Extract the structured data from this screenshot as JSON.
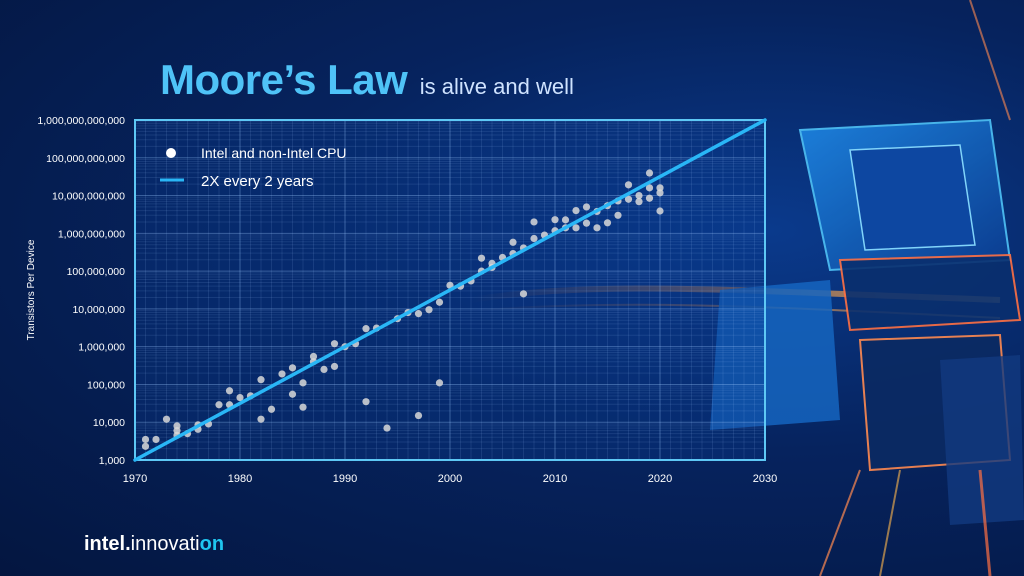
{
  "title": {
    "main": "Moore’s Law",
    "sub": "is alive and well"
  },
  "brand": {
    "part1": "intel.",
    "part2": "innovati",
    "part3": "on"
  },
  "colors": {
    "accent": "#4fc3f7",
    "trend": "#29b6f6",
    "point": "#d8d8d8",
    "background": "#06235e"
  },
  "chart_data": {
    "type": "scatter",
    "title": "Moore’s Law",
    "xlabel": "",
    "ylabel": "Transistors Per Device",
    "xlim": [
      1970,
      2030
    ],
    "ylim": [
      1000,
      1000000000000
    ],
    "yscale": "log",
    "xticks": [
      1970,
      1980,
      1990,
      2000,
      2010,
      2020,
      2030
    ],
    "xtick_labels": [
      "1970",
      "1980",
      "1990",
      "2000",
      "2010",
      "2020",
      "2030"
    ],
    "yticks": [
      1000,
      10000,
      100000,
      1000000,
      10000000,
      100000000,
      1000000000,
      10000000000,
      100000000000,
      1000000000000
    ],
    "ytick_labels": [
      "1,000",
      "10,000",
      "100,000",
      "1,000,000",
      "10,000,000",
      "100,000,000",
      "1,000,000,000",
      "10,000,000,000",
      "100,000,000,000",
      "1,000,000,000,000"
    ],
    "legend": {
      "placement": "top-left",
      "entries": [
        "Intel and non-Intel CPU",
        "2X every 2 years"
      ]
    },
    "series": [
      {
        "name": "Intel and non-Intel CPU",
        "type": "scatter",
        "points": [
          [
            1971,
            2300
          ],
          [
            1971,
            3500
          ],
          [
            1972,
            3500
          ],
          [
            1973,
            12000
          ],
          [
            1974,
            4500
          ],
          [
            1974,
            6000
          ],
          [
            1974,
            8000
          ],
          [
            1975,
            5000
          ],
          [
            1976,
            6500
          ],
          [
            1976,
            8500
          ],
          [
            1977,
            9000
          ],
          [
            1978,
            29000
          ],
          [
            1979,
            29000
          ],
          [
            1979,
            68000
          ],
          [
            1980,
            45000
          ],
          [
            1981,
            50000
          ],
          [
            1982,
            134000
          ],
          [
            1982,
            12000
          ],
          [
            1983,
            22000
          ],
          [
            1984,
            190000
          ],
          [
            1985,
            275000
          ],
          [
            1985,
            55000
          ],
          [
            1986,
            25000
          ],
          [
            1986,
            110000
          ],
          [
            1987,
            550000
          ],
          [
            1987,
            400000
          ],
          [
            1988,
            250000
          ],
          [
            1989,
            1200000
          ],
          [
            1989,
            300000
          ],
          [
            1990,
            1000000
          ],
          [
            1991,
            1200000
          ],
          [
            1992,
            3000000
          ],
          [
            1992,
            35000
          ],
          [
            1993,
            3100000
          ],
          [
            1994,
            7000
          ],
          [
            1995,
            5500000
          ],
          [
            1996,
            8000000
          ],
          [
            1997,
            7500000
          ],
          [
            1997,
            15000
          ],
          [
            1998,
            9500000
          ],
          [
            1999,
            110000
          ],
          [
            1999,
            15000000
          ],
          [
            2000,
            42000000
          ],
          [
            2001,
            40000000
          ],
          [
            2002,
            55000000
          ],
          [
            2003,
            220000000
          ],
          [
            2003,
            100000000
          ],
          [
            2004,
            125000000
          ],
          [
            2004,
            160000000
          ],
          [
            2005,
            230000000
          ],
          [
            2006,
            291000000
          ],
          [
            2006,
            580000000
          ],
          [
            2007,
            410000000
          ],
          [
            2007,
            25000000
          ],
          [
            2008,
            730000000
          ],
          [
            2008,
            2000000000
          ],
          [
            2009,
            900000000
          ],
          [
            2010,
            1170000000
          ],
          [
            2010,
            2300000000
          ],
          [
            2011,
            2270000000
          ],
          [
            2011,
            1400000000
          ],
          [
            2012,
            1400000000
          ],
          [
            2012,
            4000000000
          ],
          [
            2013,
            1860000000
          ],
          [
            2013,
            5000000000
          ],
          [
            2014,
            3800000000
          ],
          [
            2014,
            1400000000
          ],
          [
            2015,
            5400000000
          ],
          [
            2015,
            1900000000
          ],
          [
            2016,
            7200000000
          ],
          [
            2016,
            3000000000
          ],
          [
            2017,
            19200000000
          ],
          [
            2017,
            8000000000
          ],
          [
            2018,
            10000000000
          ],
          [
            2018,
            6900000000
          ],
          [
            2019,
            39500000000
          ],
          [
            2019,
            16000000000
          ],
          [
            2019,
            8500000000
          ],
          [
            2020,
            16000000000
          ],
          [
            2020,
            11800000000
          ],
          [
            2020,
            3900000000
          ]
        ]
      },
      {
        "name": "2X every 2 years",
        "type": "line",
        "points": [
          [
            1970,
            1000
          ],
          [
            2030,
            1000000000000
          ]
        ]
      }
    ]
  }
}
